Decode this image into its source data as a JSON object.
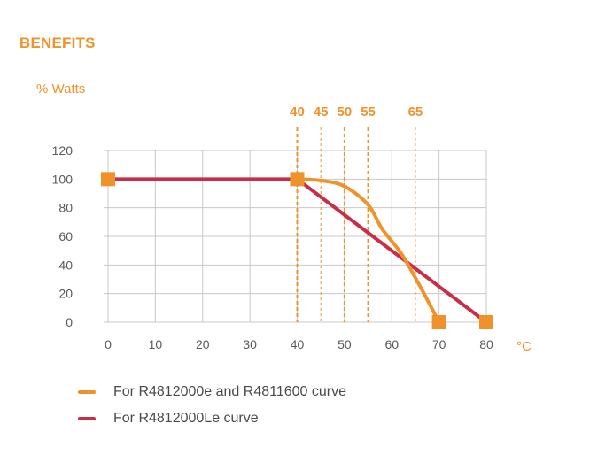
{
  "header": {
    "title": "BENEFITS"
  },
  "chart_data": {
    "type": "line",
    "ylabel": "% Watts",
    "xunit": "°C",
    "x_ticks": [
      0,
      10,
      20,
      30,
      40,
      50,
      60,
      70,
      80
    ],
    "y_ticks": [
      0,
      20,
      40,
      60,
      80,
      100,
      120
    ],
    "xlim": [
      0,
      80
    ],
    "ylim": [
      0,
      120
    ],
    "grid": true,
    "threshold_markers": [
      40,
      45,
      50,
      55,
      65
    ],
    "series": [
      {
        "name": "For R4812000e and R4811600 curve",
        "color": "#f0922b",
        "points": [
          [
            40,
            100
          ],
          [
            45,
            99
          ],
          [
            50,
            95
          ],
          [
            55,
            82
          ],
          [
            58,
            65
          ],
          [
            62,
            48
          ],
          [
            66,
            25
          ],
          [
            70,
            0
          ]
        ],
        "markers": [
          [
            40,
            100
          ],
          [
            70,
            0
          ]
        ]
      },
      {
        "name": "For R4812000Le curve",
        "color": "#c82e46",
        "points": [
          [
            0,
            100
          ],
          [
            40,
            100
          ],
          [
            80,
            0
          ]
        ],
        "markers": [
          [
            0,
            100
          ],
          [
            80,
            0
          ]
        ]
      }
    ],
    "legend_position": "bottom-left"
  }
}
